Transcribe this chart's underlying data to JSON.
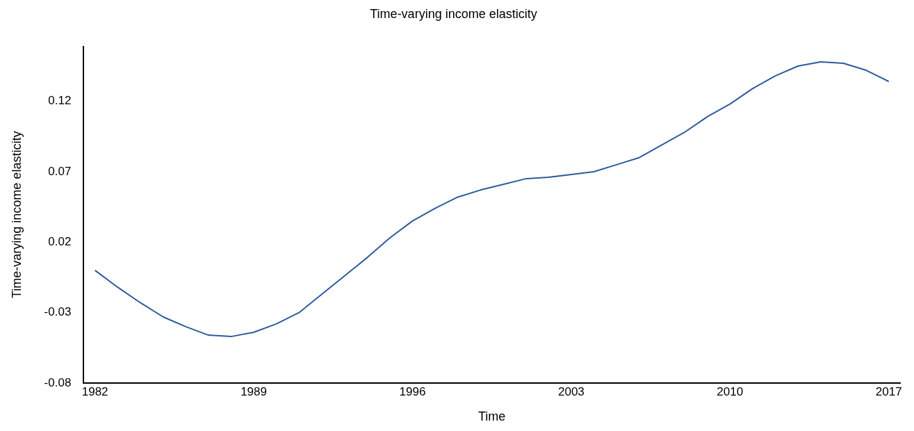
{
  "chart_data": {
    "type": "line",
    "title": "Time-varying income elasticity",
    "xlabel": "Time",
    "ylabel": "Time-varying income elasticity",
    "x": [
      1982,
      1983,
      1984,
      1985,
      1986,
      1987,
      1988,
      1989,
      1990,
      1991,
      1992,
      1993,
      1994,
      1995,
      1996,
      1997,
      1998,
      1999,
      2000,
      2001,
      2002,
      2003,
      2004,
      2005,
      2006,
      2007,
      2008,
      2009,
      2010,
      2011,
      2012,
      2013,
      2014,
      2015,
      2016,
      2017
    ],
    "series": [
      {
        "color": "#2c5b9c",
        "values": [
          0.0,
          -0.012,
          -0.023,
          -0.033,
          -0.04,
          -0.046,
          -0.047,
          -0.044,
          -0.038,
          -0.03,
          -0.017,
          -0.004,
          0.009,
          0.023,
          0.035,
          0.044,
          0.052,
          0.057,
          0.061,
          0.065,
          0.066,
          0.068,
          0.07,
          0.075,
          0.08,
          0.089,
          0.098,
          0.109,
          0.118,
          0.129,
          0.138,
          0.145,
          0.148,
          0.147,
          0.142,
          0.134
        ]
      }
    ],
    "xlim": [
      1981.5,
      2017.5
    ],
    "xticks": [
      1982,
      1989,
      1996,
      2003,
      2010,
      2017
    ],
    "ylim": [
      -0.08,
      0.159
    ],
    "yticks": [
      {
        "value": -0.08,
        "label": "-0.08"
      },
      {
        "value": -0.03,
        "label": "-0.03"
      },
      {
        "value": 0.02,
        "label": "0.02"
      },
      {
        "value": 0.07,
        "label": "0.07"
      },
      {
        "value": 0.12,
        "label": "0.12"
      }
    ],
    "grid": false,
    "legend": false,
    "marker": "none",
    "line_style": "solid"
  }
}
